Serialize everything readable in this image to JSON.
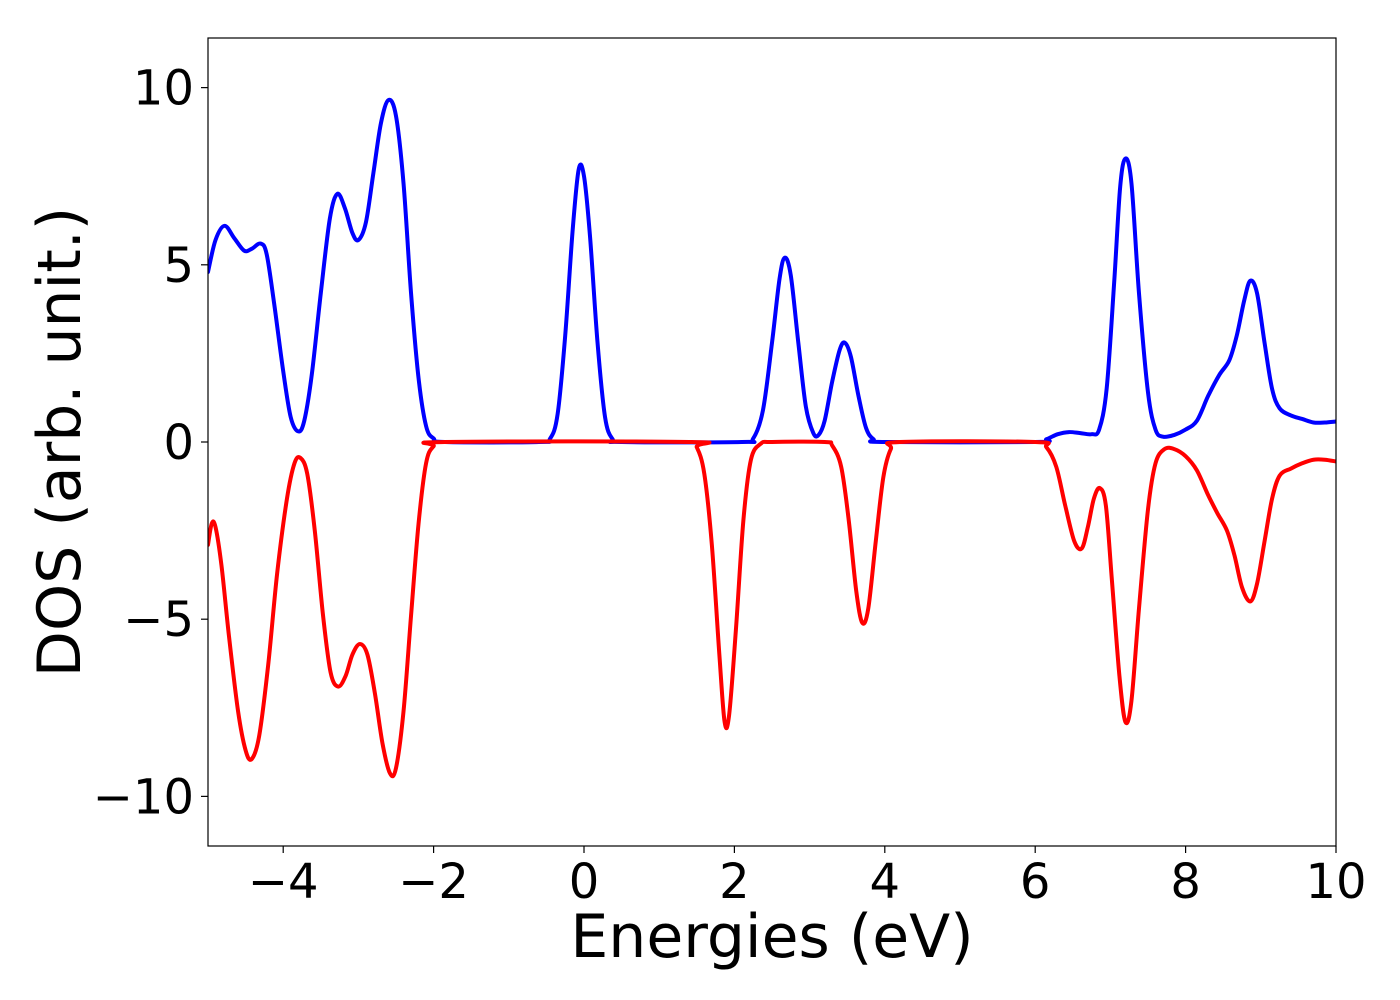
{
  "chart_data": {
    "type": "line",
    "title": "",
    "xlabel": "Energies (eV)",
    "ylabel": "DOS (arb. unit.)",
    "xlim": [
      -5,
      10
    ],
    "ylim": [
      -11.4,
      11.4
    ],
    "xticks": [
      -4,
      -2,
      0,
      2,
      4,
      6,
      8,
      10
    ],
    "xtick_labels": [
      "−4",
      "−2",
      "0",
      "2",
      "4",
      "6",
      "8",
      "10"
    ],
    "yticks": [
      -10,
      -5,
      0,
      5,
      10
    ],
    "ytick_labels": [
      "−10",
      "−5",
      "0",
      "5",
      "10"
    ],
    "grid": false,
    "legend": "none",
    "series": [
      {
        "color": "#0000ff",
        "points": [
          [
            -5.0,
            4.8
          ],
          [
            -4.9,
            5.7
          ],
          [
            -4.78,
            6.1
          ],
          [
            -4.65,
            5.75
          ],
          [
            -4.52,
            5.4
          ],
          [
            -4.42,
            5.45
          ],
          [
            -4.3,
            5.6
          ],
          [
            -4.22,
            5.3
          ],
          [
            -4.12,
            3.9
          ],
          [
            -4.0,
            2.0
          ],
          [
            -3.9,
            0.7
          ],
          [
            -3.8,
            0.3
          ],
          [
            -3.72,
            0.6
          ],
          [
            -3.62,
            1.9
          ],
          [
            -3.5,
            4.2
          ],
          [
            -3.38,
            6.3
          ],
          [
            -3.28,
            7.0
          ],
          [
            -3.18,
            6.6
          ],
          [
            -3.08,
            5.9
          ],
          [
            -3.0,
            5.7
          ],
          [
            -2.9,
            6.2
          ],
          [
            -2.8,
            7.6
          ],
          [
            -2.7,
            9.0
          ],
          [
            -2.6,
            9.65
          ],
          [
            -2.5,
            9.2
          ],
          [
            -2.4,
            7.3
          ],
          [
            -2.3,
            4.2
          ],
          [
            -2.2,
            1.8
          ],
          [
            -2.1,
            0.45
          ],
          [
            -2.0,
            0.1
          ],
          [
            -1.85,
            0.0
          ],
          [
            -0.6,
            0.0
          ],
          [
            -0.45,
            0.1
          ],
          [
            -0.35,
            0.8
          ],
          [
            -0.25,
            3.0
          ],
          [
            -0.15,
            6.0
          ],
          [
            -0.07,
            7.7
          ],
          [
            0.0,
            7.5
          ],
          [
            0.08,
            5.8
          ],
          [
            0.18,
            2.8
          ],
          [
            0.28,
            0.7
          ],
          [
            0.38,
            0.08
          ],
          [
            0.5,
            0.0
          ],
          [
            2.1,
            0.0
          ],
          [
            2.25,
            0.1
          ],
          [
            2.38,
            0.9
          ],
          [
            2.5,
            2.8
          ],
          [
            2.6,
            4.6
          ],
          [
            2.67,
            5.2
          ],
          [
            2.75,
            4.7
          ],
          [
            2.85,
            2.8
          ],
          [
            2.95,
            1.0
          ],
          [
            3.05,
            0.25
          ],
          [
            3.12,
            0.2
          ],
          [
            3.2,
            0.6
          ],
          [
            3.3,
            1.7
          ],
          [
            3.4,
            2.6
          ],
          [
            3.47,
            2.8
          ],
          [
            3.55,
            2.4
          ],
          [
            3.65,
            1.3
          ],
          [
            3.75,
            0.4
          ],
          [
            3.85,
            0.08
          ],
          [
            4.0,
            0.0
          ],
          [
            6.0,
            0.0
          ],
          [
            6.15,
            0.08
          ],
          [
            6.3,
            0.22
          ],
          [
            6.45,
            0.28
          ],
          [
            6.6,
            0.25
          ],
          [
            6.75,
            0.22
          ],
          [
            6.85,
            0.35
          ],
          [
            6.95,
            1.5
          ],
          [
            7.05,
            4.5
          ],
          [
            7.13,
            7.2
          ],
          [
            7.2,
            8.0
          ],
          [
            7.28,
            7.3
          ],
          [
            7.38,
            4.2
          ],
          [
            7.5,
            1.4
          ],
          [
            7.6,
            0.35
          ],
          [
            7.7,
            0.15
          ],
          [
            7.85,
            0.2
          ],
          [
            8.0,
            0.35
          ],
          [
            8.15,
            0.6
          ],
          [
            8.3,
            1.3
          ],
          [
            8.45,
            1.9
          ],
          [
            8.58,
            2.3
          ],
          [
            8.68,
            3.0
          ],
          [
            8.78,
            4.0
          ],
          [
            8.86,
            4.55
          ],
          [
            8.95,
            4.2
          ],
          [
            9.05,
            2.8
          ],
          [
            9.15,
            1.5
          ],
          [
            9.25,
            0.95
          ],
          [
            9.4,
            0.75
          ],
          [
            9.55,
            0.65
          ],
          [
            9.7,
            0.55
          ],
          [
            9.85,
            0.55
          ],
          [
            10.0,
            0.58
          ]
        ]
      },
      {
        "color": "#ff0000",
        "points": [
          [
            -5.0,
            -2.9
          ],
          [
            -4.95,
            -2.3
          ],
          [
            -4.9,
            -2.4
          ],
          [
            -4.82,
            -3.5
          ],
          [
            -4.72,
            -5.5
          ],
          [
            -4.6,
            -7.6
          ],
          [
            -4.5,
            -8.7
          ],
          [
            -4.42,
            -8.95
          ],
          [
            -4.32,
            -8.3
          ],
          [
            -4.2,
            -6.3
          ],
          [
            -4.08,
            -3.7
          ],
          [
            -3.95,
            -1.6
          ],
          [
            -3.85,
            -0.6
          ],
          [
            -3.77,
            -0.45
          ],
          [
            -3.68,
            -0.9
          ],
          [
            -3.58,
            -2.5
          ],
          [
            -3.47,
            -4.9
          ],
          [
            -3.37,
            -6.5
          ],
          [
            -3.27,
            -6.9
          ],
          [
            -3.17,
            -6.6
          ],
          [
            -3.08,
            -6.0
          ],
          [
            -2.98,
            -5.7
          ],
          [
            -2.88,
            -6.0
          ],
          [
            -2.78,
            -7.1
          ],
          [
            -2.68,
            -8.5
          ],
          [
            -2.58,
            -9.35
          ],
          [
            -2.5,
            -9.2
          ],
          [
            -2.4,
            -7.6
          ],
          [
            -2.3,
            -4.9
          ],
          [
            -2.2,
            -2.3
          ],
          [
            -2.1,
            -0.6
          ],
          [
            -2.0,
            -0.12
          ],
          [
            -1.85,
            0.0
          ],
          [
            1.4,
            0.0
          ],
          [
            1.5,
            -0.15
          ],
          [
            1.6,
            -0.9
          ],
          [
            1.7,
            -2.9
          ],
          [
            1.8,
            -6.0
          ],
          [
            1.87,
            -7.9
          ],
          [
            1.93,
            -7.7
          ],
          [
            2.02,
            -5.3
          ],
          [
            2.12,
            -2.2
          ],
          [
            2.22,
            -0.5
          ],
          [
            2.35,
            -0.05
          ],
          [
            2.5,
            0.0
          ],
          [
            3.2,
            0.0
          ],
          [
            3.3,
            -0.1
          ],
          [
            3.42,
            -0.7
          ],
          [
            3.52,
            -2.2
          ],
          [
            3.62,
            -4.2
          ],
          [
            3.7,
            -5.1
          ],
          [
            3.78,
            -4.7
          ],
          [
            3.88,
            -2.8
          ],
          [
            3.98,
            -1.0
          ],
          [
            4.08,
            -0.2
          ],
          [
            4.2,
            0.0
          ],
          [
            6.0,
            0.0
          ],
          [
            6.15,
            -0.15
          ],
          [
            6.28,
            -0.7
          ],
          [
            6.4,
            -1.8
          ],
          [
            6.52,
            -2.8
          ],
          [
            6.62,
            -3.0
          ],
          [
            6.7,
            -2.4
          ],
          [
            6.78,
            -1.6
          ],
          [
            6.86,
            -1.3
          ],
          [
            6.94,
            -1.8
          ],
          [
            7.02,
            -3.9
          ],
          [
            7.12,
            -6.6
          ],
          [
            7.2,
            -7.9
          ],
          [
            7.28,
            -7.3
          ],
          [
            7.38,
            -4.7
          ],
          [
            7.5,
            -1.9
          ],
          [
            7.6,
            -0.6
          ],
          [
            7.72,
            -0.2
          ],
          [
            7.85,
            -0.2
          ],
          [
            8.0,
            -0.4
          ],
          [
            8.15,
            -0.8
          ],
          [
            8.3,
            -1.5
          ],
          [
            8.42,
            -2.0
          ],
          [
            8.55,
            -2.5
          ],
          [
            8.65,
            -3.2
          ],
          [
            8.75,
            -4.1
          ],
          [
            8.86,
            -4.5
          ],
          [
            8.95,
            -4.0
          ],
          [
            9.05,
            -2.8
          ],
          [
            9.15,
            -1.6
          ],
          [
            9.25,
            -0.95
          ],
          [
            9.4,
            -0.75
          ],
          [
            9.55,
            -0.6
          ],
          [
            9.7,
            -0.5
          ],
          [
            9.85,
            -0.5
          ],
          [
            10.0,
            -0.55
          ]
        ]
      }
    ]
  }
}
